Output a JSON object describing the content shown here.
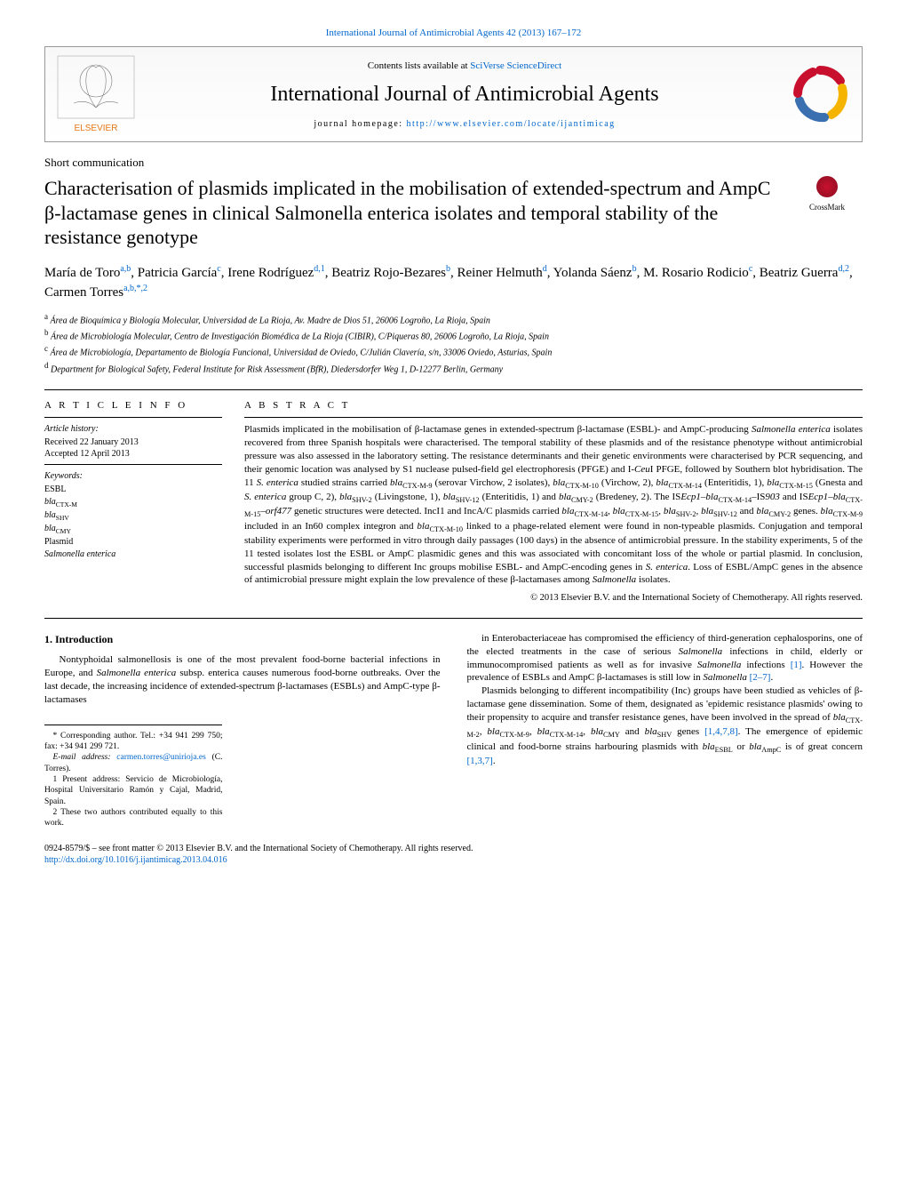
{
  "top_link": {
    "prefix": "",
    "text": "International Journal of Antimicrobial Agents 42 (2013) 167–172"
  },
  "header": {
    "contents_prefix": "Contents lists available at ",
    "contents_link": "SciVerse ScienceDirect",
    "journal": "International Journal of Antimicrobial Agents",
    "homepage_prefix": "journal homepage: ",
    "homepage_link": "http://www.elsevier.com/locate/ijantimicag",
    "elsevier_alt": "ELSEVIER"
  },
  "article": {
    "type": "Short communication",
    "title": "Characterisation of plasmids implicated in the mobilisation of extended-spectrum and AmpC β-lactamase genes in clinical Salmonella enterica isolates and temporal stability of the resistance genotype",
    "crossmark": "CrossMark"
  },
  "authors_html": "María de Toro<sup>a,b</sup>, Patricia García<sup>c</sup>, Irene Rodríguez<sup>d,1</sup>, Beatriz Rojo-Bezares<sup>b</sup>, Reiner Helmuth<sup>d</sup>, Yolanda Sáenz<sup>b</sup>, M. Rosario Rodicio<sup>c</sup>, Beatriz Guerra<sup>d,2</sup>, Carmen Torres<sup>a,b,*,2</sup>",
  "affiliations": [
    {
      "sup": "a",
      "text": "Área de Bioquímica y Biología Molecular, Universidad de La Rioja, Av. Madre de Dios 51, 26006 Logroño, La Rioja, Spain"
    },
    {
      "sup": "b",
      "text": "Área de Microbiología Molecular, Centro de Investigación Biomédica de La Rioja (CIBIR), C/Piqueras 80, 26006 Logroño, La Rioja, Spain"
    },
    {
      "sup": "c",
      "text": "Área de Microbiología, Departamento de Biología Funcional, Universidad de Oviedo, C/Julián Clavería, s/n, 33006 Oviedo, Asturias, Spain"
    },
    {
      "sup": "d",
      "text": "Department for Biological Safety, Federal Institute for Risk Assessment (BfR), Diedersdorfer Weg 1, D-12277 Berlin, Germany"
    }
  ],
  "article_info": {
    "heading": "A R T I C L E   I N F O",
    "history_label": "Article history:",
    "received": "Received 22 January 2013",
    "accepted": "Accepted 12 April 2013",
    "keywords_label": "Keywords:",
    "keywords": [
      "ESBL",
      "bla_CTX-M",
      "bla_SHV",
      "bla_CMY",
      "Plasmid",
      "Salmonella enterica"
    ]
  },
  "abstract": {
    "heading": "A B S T R A C T",
    "body": "Plasmids implicated in the mobilisation of β-lactamase genes in extended-spectrum β-lactamase (ESBL)- and AmpC-producing Salmonella enterica isolates recovered from three Spanish hospitals were characterised. The temporal stability of these plasmids and of the resistance phenotype without antimicrobial pressure was also assessed in the laboratory setting. The resistance determinants and their genetic environments were characterised by PCR sequencing, and their genomic location was analysed by S1 nuclease pulsed-field gel electrophoresis (PFGE) and I-CeuI PFGE, followed by Southern blot hybridisation. The 11 S. enterica studied strains carried bla_CTX-M-9 (serovar Virchow, 2 isolates), bla_CTX-M-10 (Virchow, 2), bla_CTX-M-14 (Enteritidis, 1), bla_CTX-M-15 (Gnesta and S. enterica group C, 2), bla_SHV-2 (Livingstone, 1), bla_SHV-12 (Enteritidis, 1) and bla_CMY-2 (Bredeney, 2). The ISEcp1–bla_CTX-M-14–IS903 and ISEcp1–bla_CTX-M-15–orf477 genetic structures were detected. IncI1 and IncA/C plasmids carried bla_CTX-M-14, bla_CTX-M-15, bla_SHV-2, bla_SHV-12 and bla_CMY-2 genes. bla_CTX-M-9 included in an In60 complex integron and bla_CTX-M-10 linked to a phage-related element were found in non-typeable plasmids. Conjugation and temporal stability experiments were performed in vitro through daily passages (100 days) in the absence of antimicrobial pressure. In the stability experiments, 5 of the 11 tested isolates lost the ESBL or AmpC plasmidic genes and this was associated with concomitant loss of the whole or partial plasmid. In conclusion, successful plasmids belonging to different Inc groups mobilise ESBL- and AmpC-encoding genes in S. enterica. Loss of ESBL/AmpC genes in the absence of antimicrobial pressure might explain the low prevalence of these β-lactamases among Salmonella isolates.",
    "copyright": "© 2013 Elsevier B.V. and the International Society of Chemotherapy. All rights reserved."
  },
  "intro": {
    "heading": "1.  Introduction",
    "p1": "Nontyphoidal salmonellosis is one of the most prevalent food-borne bacterial infections in Europe, and Salmonella enterica subsp. enterica causes numerous food-borne outbreaks. Over the last decade, the increasing incidence of extended-spectrum β-lactamases (ESBLs) and AmpC-type β-lactamases",
    "p2a": "in Enterobacteriaceae has compromised the efficiency of third-generation cephalosporins, one of the elected treatments in the case of serious Salmonella infections in child, elderly or immunocompromised patients as well as for invasive Salmonella infections ",
    "p2_ref1": "[1]",
    "p2b": ". However the prevalence of ESBLs and AmpC β-lactamases is still low in Salmonella ",
    "p2_ref2": "[2–7]",
    "p2c": ".",
    "p3a": "Plasmids belonging to different incompatibility (Inc) groups have been studied as vehicles of β-lactamase gene dissemination. Some of them, designated as 'epidemic resistance plasmids' owing to their propensity to acquire and transfer resistance genes, have been involved in the spread of bla_CTX-M-2, bla_CTX-M-9, bla_CTX-M-14, bla_CMY and bla_SHV genes ",
    "p3_ref1": "[1,4,7,8]",
    "p3b": ". The emergence of epidemic clinical and food-borne strains harbouring plasmids with bla_ESBL or bla_AmpC is of great concern ",
    "p3_ref2": "[1,3,7]",
    "p3c": "."
  },
  "footnotes": {
    "corr": "* Corresponding author. Tel.: +34 941 299 750; fax: +34 941 299 721.",
    "email_label": "E-mail address: ",
    "email": "carmen.torres@unirioja.es",
    "email_who": " (C. Torres).",
    "fn1": "1 Present address: Servicio de Microbiología, Hospital Universitario Ramón y Cajal, Madrid, Spain.",
    "fn2": "2 These two authors contributed equally to this work."
  },
  "bottom": {
    "line1": "0924-8579/$ – see front matter © 2013 Elsevier B.V. and the International Society of Chemotherapy. All rights reserved.",
    "doi": "http://dx.doi.org/10.1016/j.ijantimicag.2013.04.016"
  },
  "colors": {
    "link": "#0066cc",
    "rule": "#000000",
    "crossmark_outer": "#c8102e",
    "crossmark_inner": "#8a0f22",
    "elsevier_orange": "#e67817",
    "isc_red": "#c8102e",
    "isc_yellow": "#f4b400",
    "isc_blue": "#3a6fb0"
  }
}
